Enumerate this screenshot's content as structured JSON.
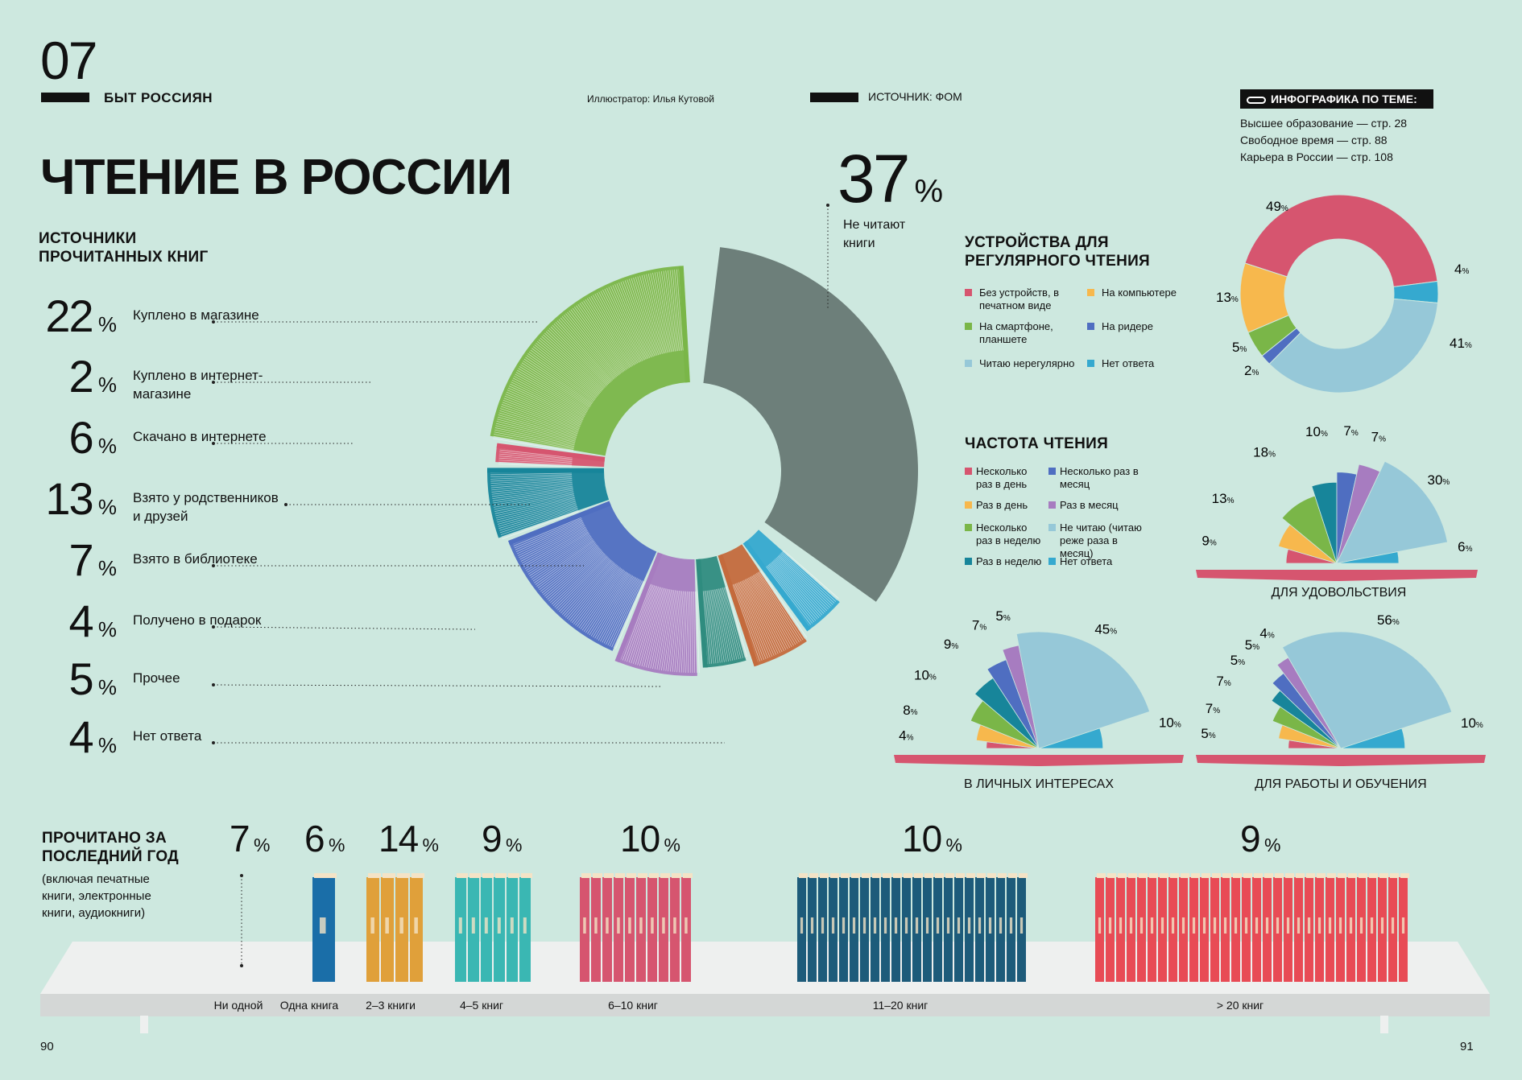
{
  "header": {
    "number": "07",
    "section": "БЫТ РОССИЯН",
    "illustrator": "Иллюстратор: Илья Кутовой",
    "source": "ИСТОЧНИК: ФОМ",
    "related_title": "ИНФОГРАФИКА ПО ТЕМЕ:",
    "related": [
      "Высшее образование — стр. 28",
      "Свободное время — стр. 88",
      "Карьера в России — стр. 108"
    ]
  },
  "main_title": "ЧТЕНИЕ В РОССИИ",
  "not_reading": {
    "value": "37",
    "unit": "%",
    "label": "Не читают книги"
  },
  "colors": {
    "bg": "#cde8df",
    "grey": "#6d7f7a",
    "green": "#7ab648",
    "red": "#d6556f",
    "teal": "#17859a",
    "blue": "#4f6ec1",
    "purple": "#a77cc0",
    "darkteal": "#2f8c7f",
    "orange": "#c46a3c",
    "lightblue": "#35a9cf",
    "yellow": "#f7b84d",
    "pale": "#96c8d8"
  },
  "chart_data": [
    {
      "type": "pie",
      "title": "ИСТОЧНИКИ ПРОЧИТАННЫХ КНИГ",
      "categories": [
        "Куплено в магазине",
        "Куплено в интернет-магазине",
        "Скачано в интернете",
        "Взято у родственников и друзей",
        "Взято в библиотеке",
        "Получено в подарок",
        "Прочее",
        "Нет ответа",
        "Не читают книги"
      ],
      "values": [
        22,
        2,
        6,
        13,
        7,
        4,
        5,
        4,
        37
      ],
      "colors": [
        "#7ab648",
        "#d6556f",
        "#17859a",
        "#4f6ec1",
        "#a77cc0",
        "#2f8c7f",
        "#c46a3c",
        "#35a9cf",
        "#6d7f7a"
      ]
    },
    {
      "type": "pie",
      "title": "УСТРОЙСТВА ДЛЯ РЕГУЛЯРНОГО ЧТЕНИЯ",
      "categories": [
        "Без устройств, в печатном виде",
        "На компьютере",
        "На смартфоне, планшете",
        "На ридере",
        "Читаю нерегулярно",
        "Нет ответа"
      ],
      "values": [
        49,
        13,
        5,
        2,
        41,
        4
      ],
      "colors": [
        "#d6556f",
        "#f7b84d",
        "#7ab648",
        "#4f6ec1",
        "#96c8d8",
        "#35a9cf"
      ]
    },
    {
      "type": "pie",
      "title": "ДЛЯ УДОВОЛЬСТВИЯ",
      "categories": [
        "Несколько раз в день",
        "Раз в день",
        "Несколько раз в неделю",
        "Раз в неделю",
        "Несколько раз в месяц",
        "Раз в месяц",
        "Не читаю (читаю реже раза в месяц)",
        "Нет ответа"
      ],
      "values": [
        9,
        13,
        18,
        10,
        7,
        7,
        30,
        6
      ],
      "colors": [
        "#d6556f",
        "#f7b84d",
        "#7ab648",
        "#17859a",
        "#4f6ec1",
        "#a77cc0",
        "#96c8d8",
        "#35a9cf"
      ]
    },
    {
      "type": "pie",
      "title": "В ЛИЧНЫХ ИНТЕРЕСАХ",
      "categories": [
        "Несколько раз в день",
        "Раз в день",
        "Несколько раз в неделю",
        "Раз в неделю",
        "Несколько раз в месяц",
        "Раз в месяц",
        "Не читаю (читаю реже раза в месяц)",
        "Нет ответа"
      ],
      "values": [
        4,
        8,
        10,
        9,
        7,
        5,
        45,
        10
      ],
      "colors": [
        "#d6556f",
        "#f7b84d",
        "#7ab648",
        "#17859a",
        "#4f6ec1",
        "#a77cc0",
        "#96c8d8",
        "#35a9cf"
      ]
    },
    {
      "type": "pie",
      "title": "ДЛЯ РАБОТЫ И ОБУЧЕНИЯ",
      "categories": [
        "Несколько раз в день",
        "Раз в день",
        "Несколько раз в неделю",
        "Раз в неделю",
        "Несколько раз в месяц",
        "Раз в месяц",
        "Не читаю (читаю реже раза в месяц)",
        "Нет ответа"
      ],
      "values": [
        5,
        7,
        7,
        5,
        5,
        4,
        56,
        10
      ],
      "colors": [
        "#d6556f",
        "#f7b84d",
        "#7ab648",
        "#17859a",
        "#4f6ec1",
        "#a77cc0",
        "#96c8d8",
        "#35a9cf"
      ]
    },
    {
      "type": "bar",
      "title": "ПРОЧИТАНО ЗА ПОСЛЕДНИЙ ГОД",
      "subtitle": "(включая печатные книги, электронные книги, аудиокниги)",
      "categories": [
        "Ни одной",
        "Одна книга",
        "2–3 книги",
        "4–5 книг",
        "6–10 книг",
        "11–20 книг",
        "> 20 книг"
      ],
      "values": [
        7,
        6,
        14,
        9,
        10,
        10,
        9
      ]
    }
  ],
  "sources_title": "ИСТОЧНИКИ ПРОЧИТАННЫХ КНИГ",
  "devices_title": "УСТРОЙСТВА ДЛЯ РЕГУЛЯРНОГО ЧТЕНИЯ",
  "freq_title": "ЧАСТОТА ЧТЕНИЯ",
  "year_title": "ПРОЧИТАНО ЗА ПОСЛЕДНИЙ ГОД",
  "year_sub": "(включая печатные книги, электронные книги, аудиокниги)",
  "pages": {
    "left": "90",
    "right": "91"
  }
}
